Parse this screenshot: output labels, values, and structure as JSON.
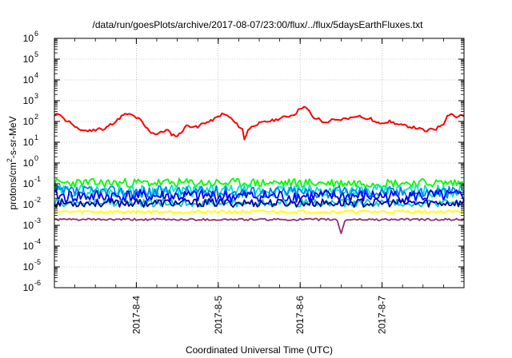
{
  "chart_data": {
    "type": "line",
    "title": "/data/run/goesPlots/archive/2017-08-07/23:00/flux/../flux/5daysEarthFluxes.txt",
    "xlabel": "Coordinated Universal Time (UTC)",
    "ylabel": {
      "prefix": "protons/cm",
      "sup": "2",
      "suffix": "-s-sr-MeV"
    },
    "yscale": "log",
    "ylim": [
      1e-06,
      1000000.0
    ],
    "y_ticks": [
      {
        "base": "10",
        "exp": "-6"
      },
      {
        "base": "10",
        "exp": "-5"
      },
      {
        "base": "10",
        "exp": "-4"
      },
      {
        "base": "10",
        "exp": "-3"
      },
      {
        "base": "10",
        "exp": "-2"
      },
      {
        "base": "10",
        "exp": "-1"
      },
      {
        "base": "10",
        "exp": "0"
      },
      {
        "base": "10",
        "exp": "1"
      },
      {
        "base": "10",
        "exp": "2"
      },
      {
        "base": "10",
        "exp": "3"
      },
      {
        "base": "10",
        "exp": "4"
      },
      {
        "base": "10",
        "exp": "5"
      },
      {
        "base": "10",
        "exp": "6"
      }
    ],
    "xlim": [
      "2017-08-03T00:00",
      "2017-08-08T00:00"
    ],
    "x_ticks": [
      {
        "label": "2017-8-4",
        "t": "2017-08-04T00:00"
      },
      {
        "label": "2017-8-5",
        "t": "2017-08-05T00:00"
      },
      {
        "label": "2017-8-6",
        "t": "2017-08-06T00:00"
      },
      {
        "label": "2017-8-7",
        "t": "2017-08-07T00:00"
      }
    ],
    "grid": true,
    "series": [
      {
        "color": "#ff0000",
        "noise": 0.06,
        "seed": 11,
        "values": [
          [
            0,
            180
          ],
          [
            0.05,
            250
          ],
          [
            0.08,
            220
          ],
          [
            0.12,
            120
          ],
          [
            0.2,
            90
          ],
          [
            0.25,
            50
          ],
          [
            0.32,
            40
          ],
          [
            0.4,
            35
          ],
          [
            0.5,
            40
          ],
          [
            0.55,
            50
          ],
          [
            0.6,
            35
          ],
          [
            0.65,
            60
          ],
          [
            0.75,
            100
          ],
          [
            0.82,
            180
          ],
          [
            0.88,
            230
          ],
          [
            0.95,
            200
          ],
          [
            1.0,
            150
          ],
          [
            1.05,
            120
          ],
          [
            1.1,
            60
          ],
          [
            1.18,
            30
          ],
          [
            1.25,
            25
          ],
          [
            1.3,
            30
          ],
          [
            1.38,
            40
          ],
          [
            1.42,
            25
          ],
          [
            1.5,
            20
          ],
          [
            1.55,
            30
          ],
          [
            1.6,
            60
          ],
          [
            1.7,
            60
          ],
          [
            1.75,
            50
          ],
          [
            1.8,
            80
          ],
          [
            1.9,
            100
          ],
          [
            2.0,
            170
          ],
          [
            2.05,
            230
          ],
          [
            2.1,
            200
          ],
          [
            2.15,
            150
          ],
          [
            2.2,
            90
          ],
          [
            2.3,
            40
          ],
          [
            2.32,
            12
          ],
          [
            2.36,
            40
          ],
          [
            2.45,
            70
          ],
          [
            2.5,
            80
          ],
          [
            2.6,
            100
          ],
          [
            2.7,
            120
          ],
          [
            2.8,
            160
          ],
          [
            2.9,
            200
          ],
          [
            2.95,
            250
          ],
          [
            3.0,
            450
          ],
          [
            3.05,
            500
          ],
          [
            3.1,
            350
          ],
          [
            3.18,
            120
          ],
          [
            3.22,
            150
          ],
          [
            3.3,
            80
          ],
          [
            3.38,
            120
          ],
          [
            3.45,
            110
          ],
          [
            3.55,
            140
          ],
          [
            3.62,
            150
          ],
          [
            3.7,
            200
          ],
          [
            3.75,
            170
          ],
          [
            3.8,
            120
          ],
          [
            3.85,
            150
          ],
          [
            3.9,
            100
          ],
          [
            3.95,
            80
          ],
          [
            4.0,
            90
          ],
          [
            4.1,
            100
          ],
          [
            4.2,
            70
          ],
          [
            4.3,
            60
          ],
          [
            4.4,
            50
          ],
          [
            4.5,
            40
          ],
          [
            4.55,
            30
          ],
          [
            4.6,
            50
          ],
          [
            4.65,
            40
          ],
          [
            4.7,
            60
          ],
          [
            4.75,
            80
          ],
          [
            4.8,
            200
          ],
          [
            4.85,
            250
          ],
          [
            4.9,
            150
          ],
          [
            4.95,
            200
          ],
          [
            5.0,
            180
          ]
        ]
      },
      {
        "color": "#00ff00",
        "noise": 0.22,
        "seed": 23,
        "values": [
          [
            0,
            0.11
          ],
          [
            2.5,
            0.11
          ],
          [
            5,
            0.11
          ]
        ]
      },
      {
        "color": "#00e8c0",
        "noise": 0.3,
        "seed": 29,
        "values": [
          [
            0,
            0.045
          ],
          [
            5,
            0.045
          ]
        ]
      },
      {
        "color": "#0080ff",
        "noise": 0.3,
        "seed": 37,
        "values": [
          [
            0,
            0.04
          ],
          [
            5,
            0.04
          ]
        ]
      },
      {
        "color": "#0000ff",
        "noise": 0.32,
        "seed": 41,
        "values": [
          [
            0,
            0.025
          ],
          [
            5,
            0.025
          ]
        ]
      },
      {
        "color": "#00c8c8",
        "noise": 0.18,
        "seed": 47,
        "values": [
          [
            0,
            0.012
          ],
          [
            5,
            0.012
          ]
        ]
      },
      {
        "color": "#0000a0",
        "noise": 0.2,
        "seed": 53,
        "values": [
          [
            0,
            0.012
          ],
          [
            5,
            0.012
          ]
        ]
      },
      {
        "color": "#ffff00",
        "noise": 0.08,
        "seed": 59,
        "values": [
          [
            0,
            0.0045
          ],
          [
            5,
            0.0045
          ]
        ]
      },
      {
        "color": "#903070",
        "noise": 0.05,
        "seed": 61,
        "values": [
          [
            0,
            0.0019
          ],
          [
            3.45,
            0.0019
          ],
          [
            3.5,
            0.0004
          ],
          [
            3.55,
            0.0019
          ],
          [
            5,
            0.0019
          ]
        ]
      }
    ]
  }
}
